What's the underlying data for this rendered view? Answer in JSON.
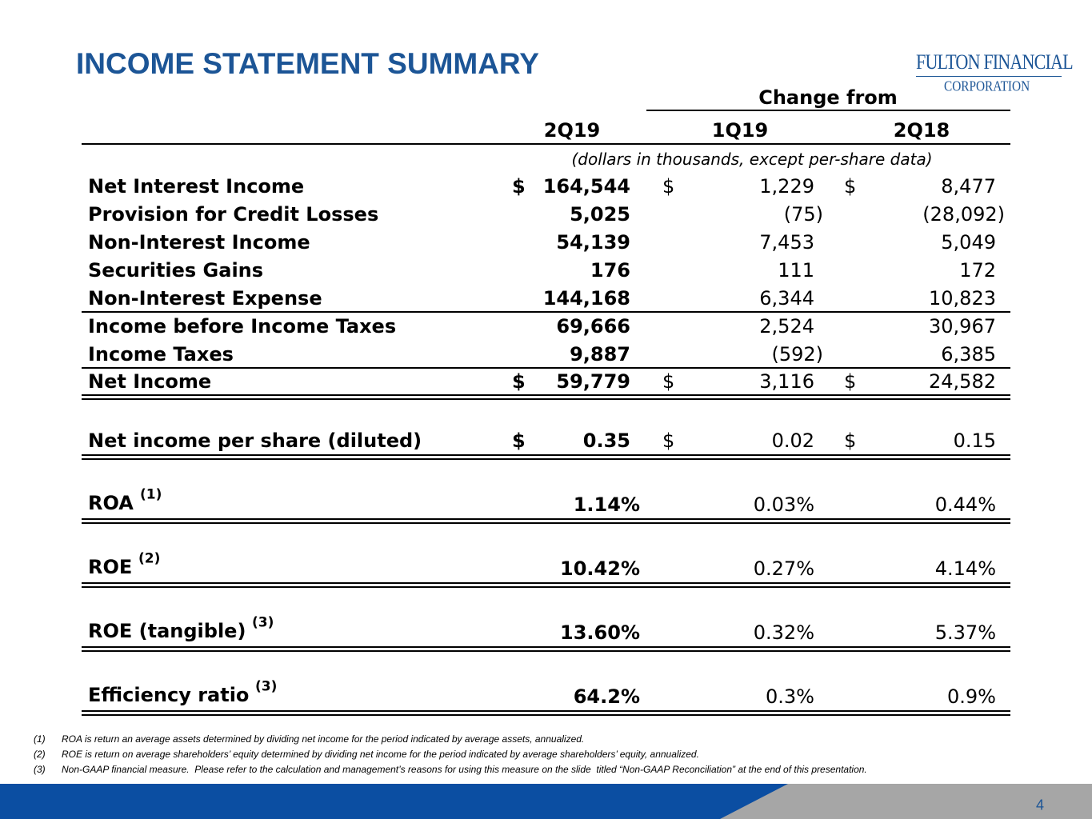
{
  "title": "INCOME STATEMENT SUMMARY",
  "logo": {
    "name": "FULTON FINANCIAL",
    "sub": "CORPORATION"
  },
  "header": {
    "change_from": "Change from",
    "columns": [
      "2Q19",
      "1Q19",
      "2Q18"
    ],
    "units": "(dollars in thousands, except per-share data)"
  },
  "rows": [
    {
      "label": "Net Interest Income",
      "cells": [
        {
          "sign": "$",
          "value": "164,544"
        },
        {
          "sign": "$",
          "value": "1,229"
        },
        {
          "sign": "$",
          "value": "8,477"
        }
      ]
    },
    {
      "label": "Provision for Credit Losses",
      "cells": [
        {
          "value": "5,025"
        },
        {
          "value": "(75)"
        },
        {
          "value": "(28,092)"
        }
      ]
    },
    {
      "label": "Non-Interest Income",
      "cells": [
        {
          "value": "54,139"
        },
        {
          "value": "7,453"
        },
        {
          "value": "5,049"
        }
      ]
    },
    {
      "label": "Securities Gains",
      "cells": [
        {
          "value": "176"
        },
        {
          "value": "111"
        },
        {
          "value": "172"
        }
      ]
    },
    {
      "label": "Non-Interest Expense",
      "cells": [
        {
          "value": "144,168"
        },
        {
          "value": "6,344"
        },
        {
          "value": "10,823"
        }
      ]
    },
    {
      "label": "Income before Income Taxes",
      "cells": [
        {
          "value": "69,666"
        },
        {
          "value": "2,524"
        },
        {
          "value": "30,967"
        }
      ]
    },
    {
      "label": "Income Taxes",
      "cells": [
        {
          "value": "9,887"
        },
        {
          "value": "(592)"
        },
        {
          "value": "6,385"
        }
      ]
    },
    {
      "label": "Net Income",
      "cells": [
        {
          "sign": "$",
          "value": "59,779"
        },
        {
          "sign": "$",
          "value": "3,116"
        },
        {
          "sign": "$",
          "value": "24,582"
        }
      ]
    },
    {
      "label": "Net income per share (diluted)",
      "cells": [
        {
          "sign": "$",
          "value": "0.35"
        },
        {
          "sign": "$",
          "value": "0.02"
        },
        {
          "sign": "$",
          "value": "0.15"
        }
      ]
    },
    {
      "label": "ROA",
      "note": "(1)",
      "cells": [
        {
          "value": "1.14%"
        },
        {
          "value": "0.03%"
        },
        {
          "value": "0.44%"
        }
      ]
    },
    {
      "label": "ROE",
      "note": "(2)",
      "cells": [
        {
          "value": "10.42%"
        },
        {
          "value": "0.27%"
        },
        {
          "value": "4.14%"
        }
      ]
    },
    {
      "label": "ROE (tangible)",
      "note": "(3)",
      "cells": [
        {
          "value": "13.60%"
        },
        {
          "value": "0.32%"
        },
        {
          "value": "5.37%"
        }
      ]
    },
    {
      "label": "Efficiency ratio",
      "note": "(3)",
      "cells": [
        {
          "value": "64.2%"
        },
        {
          "value": "0.3%"
        },
        {
          "value": "0.9%"
        }
      ]
    }
  ],
  "footnotes": [
    {
      "marker": "(1)",
      "text": "ROA is return an average assets determined by dividing net income for the period indicated by average assets, annualized."
    },
    {
      "marker": "(2)",
      "text": "ROE is return on average shareholders’ equity determined by dividing net income for the period indicated by average shareholders’ equity, annualized."
    },
    {
      "marker": "(3)",
      "text": "Non-GAAP financial measure.  Please refer to the calculation and management’s reasons for using this measure on the slide  titled “Non-GAAP Reconciliation” at the end of this presentation."
    }
  ],
  "page_number": "4"
}
